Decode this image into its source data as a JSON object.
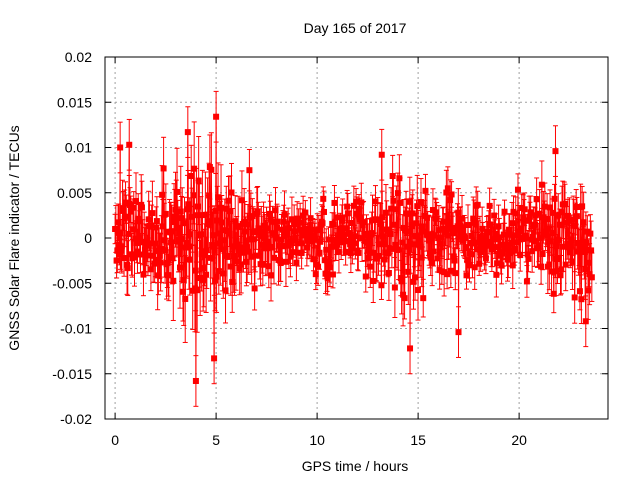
{
  "chart_data": {
    "type": "scatter",
    "title": "Day 165 of 2017",
    "xlabel": "GPS time / hours",
    "ylabel": "GNSS Solar Flare indicator / TECUs",
    "xlim": [
      -0.5,
      24.4
    ],
    "ylim": [
      -0.02,
      0.02
    ],
    "x_ticks": [
      0,
      5,
      10,
      15,
      20
    ],
    "y_ticks": [
      -0.02,
      -0.015,
      -0.01,
      -0.005,
      0,
      0.005,
      0.01,
      0.015,
      0.02
    ],
    "x_tick_labels": [
      "0",
      "5",
      "10",
      "15",
      "20"
    ],
    "y_tick_labels": [
      "-0.02",
      "-0.015",
      "-0.01",
      "-0.005",
      "0",
      "0.005",
      "0.01",
      "0.015",
      "0.02"
    ],
    "grid": true,
    "legend": "none",
    "series_color": "#ff0000",
    "marker": "filled-square-with-errorbars",
    "series": [
      {
        "x_start": 0,
        "x_end": 23.6,
        "sample_count": 640,
        "noise_envelope": [
          {
            "x": 0,
            "amplitude": 0.0045
          },
          {
            "x": 1.5,
            "amplitude": 0.005
          },
          {
            "x": 3.5,
            "amplitude": 0.0075
          },
          {
            "x": 4.5,
            "amplitude": 0.0085
          },
          {
            "x": 5.5,
            "amplitude": 0.0065
          },
          {
            "x": 7,
            "amplitude": 0.005
          },
          {
            "x": 9,
            "amplitude": 0.0035
          },
          {
            "x": 12,
            "amplitude": 0.0035
          },
          {
            "x": 14.5,
            "amplitude": 0.0055
          },
          {
            "x": 16,
            "amplitude": 0.004
          },
          {
            "x": 19,
            "amplitude": 0.0035
          },
          {
            "x": 22,
            "amplitude": 0.0045
          },
          {
            "x": 23.6,
            "amplitude": 0.005
          }
        ],
        "notable_points": [
          {
            "x": 5.0,
            "y": 0.0134
          },
          {
            "x": 4.0,
            "y": -0.0158
          },
          {
            "x": 4.9,
            "y": -0.0133
          },
          {
            "x": 3.6,
            "y": 0.0117
          },
          {
            "x": 0.7,
            "y": 0.0103
          },
          {
            "x": 0.25,
            "y": 0.01
          },
          {
            "x": 14.6,
            "y": -0.0122
          },
          {
            "x": 13.2,
            "y": 0.0092
          },
          {
            "x": 21.8,
            "y": 0.0096
          },
          {
            "x": 17,
            "y": -0.0104
          },
          {
            "x": 23.3,
            "y": -0.0092
          }
        ]
      }
    ]
  }
}
